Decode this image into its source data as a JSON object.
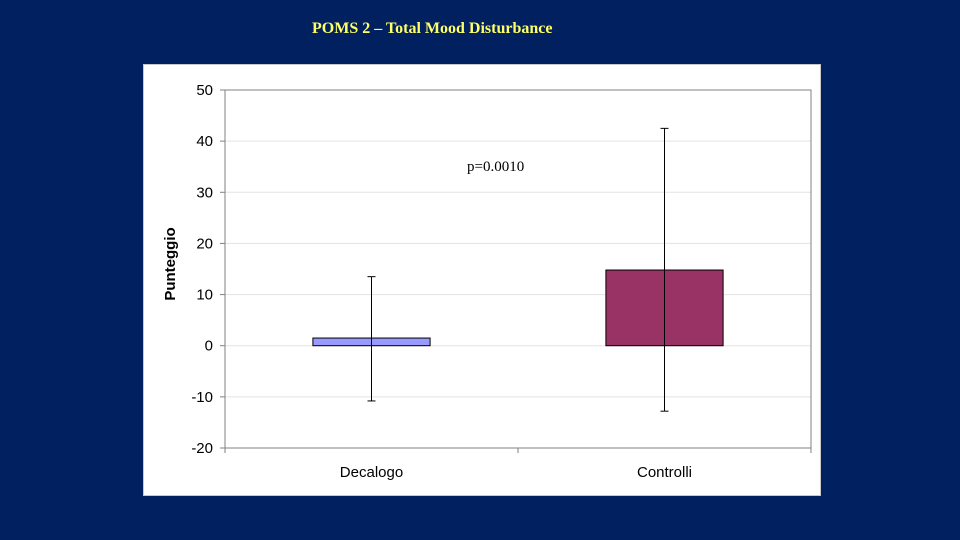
{
  "slide": {
    "title": "POMS 2 – Total Mood Disturbance"
  },
  "chart_data": {
    "type": "bar",
    "title": "",
    "xlabel": "",
    "ylabel": "Punteggio",
    "categories": [
      "Decalogo",
      "Controlli"
    ],
    "values": [
      1.5,
      14.8
    ],
    "error_low": [
      -10.8,
      -12.8
    ],
    "error_high": [
      13.5,
      42.5
    ],
    "colors": [
      "#9999ff",
      "#993366"
    ],
    "ylim": [
      -20,
      50
    ],
    "yticks": [
      50,
      40,
      30,
      20,
      10,
      0,
      -10,
      -20
    ],
    "grid": true,
    "legend": "none",
    "annotations": [
      {
        "text": "p=0.0010"
      }
    ]
  }
}
